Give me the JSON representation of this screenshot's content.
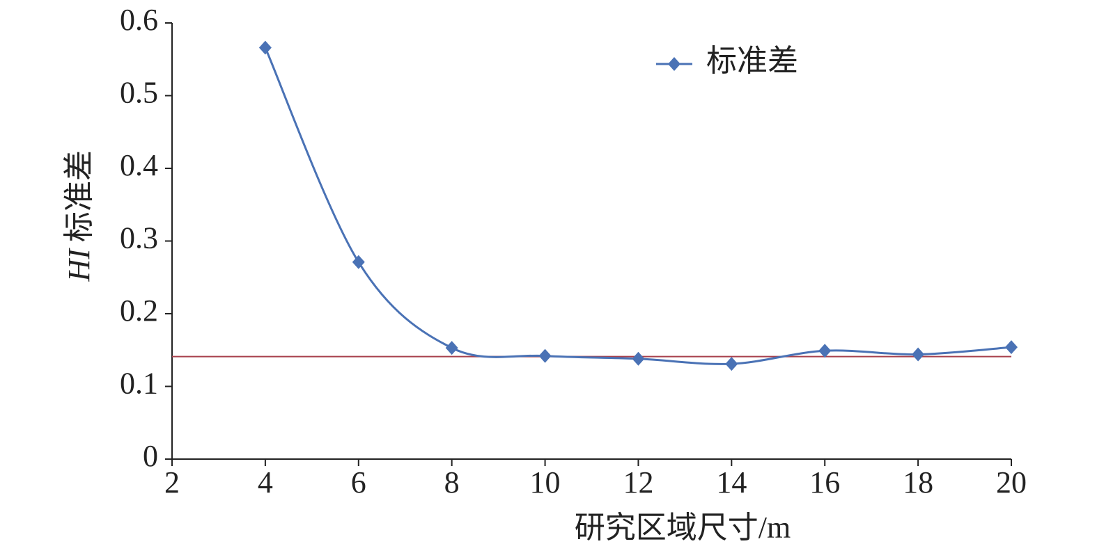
{
  "chart_data": {
    "type": "line",
    "ylabel_italic": "HI",
    "ylabel": "标准差",
    "xlabel": "研究区域尺寸/m",
    "x": [
      4,
      6,
      8,
      10,
      12,
      14,
      16,
      18,
      20
    ],
    "series": [
      {
        "name": "标准差",
        "color": "#4a72b5",
        "values": [
          0.566,
          0.271,
          0.153,
          0.142,
          0.138,
          0.131,
          0.149,
          0.144,
          0.154
        ]
      }
    ],
    "hline": {
      "value": 0.141,
      "color": "#a8404c"
    },
    "xlim": [
      2,
      20
    ],
    "xticks": [
      2,
      4,
      6,
      8,
      10,
      12,
      14,
      16,
      18,
      20
    ],
    "ylim": [
      0,
      0.6
    ],
    "yticks": [
      0,
      0.1,
      0.2,
      0.3,
      0.4,
      0.5,
      0.6
    ],
    "smooth": true,
    "legend": "top-right"
  }
}
